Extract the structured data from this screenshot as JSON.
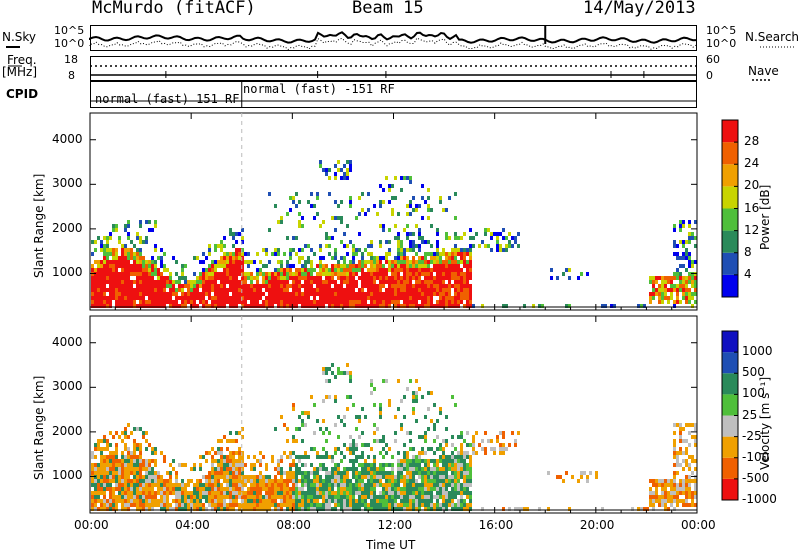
{
  "header": {
    "station": "McMurdo (fitACF)",
    "beam": "Beam 15",
    "date": "14/May/2013"
  },
  "noise_panel": {
    "left_label": "N.Sky",
    "right_label": "N.Search",
    "tick_top": "10^5",
    "tick_bottom": "10^0",
    "right_tick_top": "10^5",
    "right_tick_bottom": "10^0"
  },
  "freq_panel": {
    "left_label_1": "Freq.",
    "left_label_2": "[MHz]",
    "tick_top": "18",
    "tick_bottom": "8",
    "right_label": "Nave",
    "right_tick_top": "60",
    "right_tick_bottom": "0"
  },
  "cpid_panel": {
    "label": "CPID",
    "modes": [
      "normal (fast) 151 RF",
      "normal (fast) -151 RF"
    ]
  },
  "colors": {
    "power": [
      "#0000ee",
      "#1f4fb4",
      "#2a8a5a",
      "#4fbf3a",
      "#c8d400",
      "#f0a000",
      "#f06000",
      "#ee1010"
    ],
    "velocity": [
      "#ee1010",
      "#f06000",
      "#f0a000",
      "#bfbfbf",
      "#4fbf3a",
      "#2a8a5a",
      "#1f4fb4",
      "#1010c0"
    ]
  },
  "chart_data": [
    {
      "type": "heatmap",
      "title": "",
      "xlabel": "",
      "ylabel": "Slant Range [km]",
      "x_range_hours": [
        0,
        24
      ],
      "y_range_km": [
        180,
        4600
      ],
      "yticks": [
        1000,
        2000,
        3000,
        4000
      ],
      "colorbar": {
        "label": "Power [dB]",
        "levels": [
          0,
          4,
          8,
          12,
          16,
          20,
          24,
          28,
          32
        ],
        "tick_labels": [
          "4",
          "8",
          "12",
          "16",
          "20",
          "24",
          "28"
        ]
      }
    },
    {
      "type": "heatmap",
      "title": "",
      "xlabel": "Time UT",
      "ylabel": "Slant Range [km]",
      "x_range_hours": [
        0,
        24
      ],
      "y_range_km": [
        180,
        4600
      ],
      "yticks": [
        1000,
        2000,
        3000,
        4000
      ],
      "xticks": [
        "00:00",
        "04:00",
        "08:00",
        "12:00",
        "16:00",
        "20:00",
        "00:00"
      ],
      "colorbar": {
        "label": "Velocity [m s⁻¹]",
        "tick_labels": [
          "1000",
          "500",
          "100",
          "25",
          "-25",
          "-100",
          "-500",
          "-1000"
        ]
      }
    }
  ]
}
